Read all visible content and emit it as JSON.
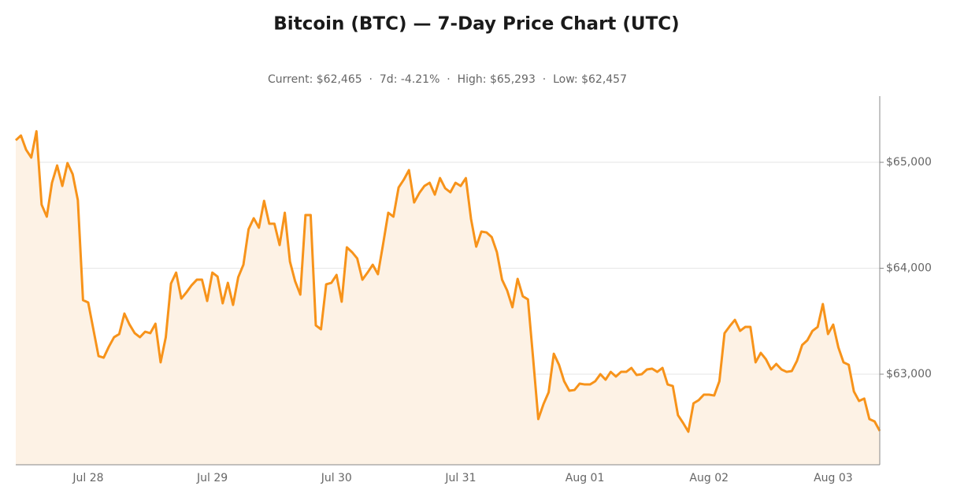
{
  "chart_data": {
    "type": "line",
    "title": "Bitcoin (BTC) — 7-Day Price Chart (UTC)",
    "subtitle": "Current: $62,465  ·  7d: -4.21%  ·  High: $65,293  ·  Low: $62,457",
    "categories": [
      null,
      null,
      null,
      null,
      null,
      null,
      null,
      null,
      null,
      null,
      null,
      null,
      null,
      null,
      "Jul 28",
      null,
      null,
      null,
      null,
      null,
      null,
      null,
      null,
      null,
      null,
      null,
      null,
      null,
      null,
      null,
      null,
      null,
      null,
      null,
      null,
      null,
      null,
      null,
      "Jul 29",
      null,
      null,
      null,
      null,
      null,
      null,
      null,
      null,
      null,
      null,
      null,
      null,
      null,
      null,
      null,
      null,
      null,
      null,
      null,
      null,
      null,
      null,
      null,
      "Jul 30",
      null,
      null,
      null,
      null,
      null,
      null,
      null,
      null,
      null,
      null,
      null,
      null,
      null,
      null,
      null,
      null,
      null,
      null,
      null,
      null,
      null,
      null,
      null,
      "Jul 31",
      null,
      null,
      null,
      null,
      null,
      null,
      null,
      null,
      null,
      null,
      null,
      null,
      null,
      null,
      null,
      null,
      null,
      null,
      null,
      null,
      null,
      null,
      null,
      "Aug 01",
      null,
      null,
      null,
      null,
      null,
      null,
      null,
      null,
      null,
      null,
      null,
      null,
      null,
      null,
      null,
      null,
      null,
      null,
      null,
      null,
      null,
      null,
      null,
      "Aug 02",
      null,
      null,
      null,
      null,
      null,
      null,
      null,
      null,
      null,
      null,
      null,
      null,
      null,
      null,
      null,
      null,
      null,
      null,
      null,
      null,
      null,
      null,
      null,
      "Aug 03",
      null,
      null,
      null,
      null,
      null,
      null,
      null,
      null,
      null
    ],
    "values": [
      65208,
      65253,
      65119,
      65045,
      65293,
      64600,
      64487,
      64807,
      64970,
      64777,
      64993,
      64888,
      64643,
      63699,
      63677,
      63424,
      63171,
      63156,
      63260,
      63349,
      63379,
      63572,
      63468,
      63387,
      63349,
      63401,
      63387,
      63476,
      63112,
      63349,
      63855,
      63959,
      63714,
      63773,
      63840,
      63892,
      63892,
      63691,
      63959,
      63922,
      63669,
      63862,
      63654,
      63915,
      64033,
      64368,
      64472,
      64383,
      64636,
      64420,
      64420,
      64219,
      64524,
      64063,
      63877,
      63751,
      64502,
      64502,
      63461,
      63424,
      63848,
      63862,
      63937,
      63684,
      64197,
      64152,
      64093,
      63892,
      63959,
      64033,
      63944,
      64227,
      64524,
      64487,
      64762,
      64836,
      64926,
      64621,
      64710,
      64777,
      64807,
      64695,
      64851,
      64755,
      64717,
      64807,
      64777,
      64851,
      64465,
      64204,
      64346,
      64338,
      64294,
      64152,
      63892,
      63788,
      63632,
      63900,
      63736,
      63706,
      63149,
      62576,
      62717,
      62829,
      63193,
      63089,
      62933,
      62844,
      62851,
      62911,
      62903,
      62903,
      62933,
      63000,
      62948,
      63022,
      62978,
      63022,
      63022,
      63059,
      62993,
      63000,
      63045,
      63052,
      63022,
      63059,
      62903,
      62888,
      62613,
      62539,
      62457,
      62725,
      62755,
      62807,
      62807,
      62799,
      62933,
      63387,
      63453,
      63513,
      63409,
      63446,
      63446,
      63112,
      63201,
      63141,
      63045,
      63097,
      63045,
      63022,
      63030,
      63126,
      63275,
      63320,
      63409,
      63446,
      63662,
      63379,
      63468,
      63253,
      63112,
      63089,
      62837,
      62747,
      62770,
      62576,
      62554,
      62465
    ],
    "color": "#f7931a",
    "area_color": "#fdf2e5",
    "ylim": [
      62145,
      65625
    ],
    "yticks": [
      {
        "value": 63000,
        "label": "$63,000"
      },
      {
        "value": 64000,
        "label": "$64,000"
      },
      {
        "value": 65000,
        "label": "$65,000"
      }
    ],
    "grid": true
  }
}
